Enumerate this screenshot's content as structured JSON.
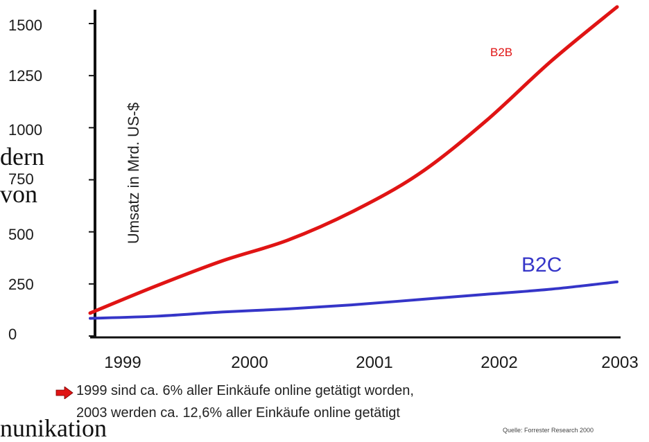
{
  "background_fragments": [
    "dern",
    "von",
    "nunikation"
  ],
  "chart_data": {
    "type": "line",
    "title": "",
    "xlabel": "",
    "ylabel": "Umsatz in Mrd. US-$",
    "x": [
      1999,
      2000,
      2001,
      2002,
      2003
    ],
    "xticks": [
      "1999",
      "2000",
      "2001",
      "2002",
      "2003"
    ],
    "yticks": [
      "0",
      "250",
      "500",
      "750",
      "1000",
      "1250",
      "1500"
    ],
    "ylim": [
      0,
      1500
    ],
    "xlim": [
      1999,
      2003
    ],
    "grid": false,
    "series": [
      {
        "name": "B2B",
        "color": "#e01414",
        "x": [
          1999,
          1999.5,
          2000,
          2000.5,
          2001,
          2001.5,
          2002,
          2002.5,
          2003
        ],
        "values": [
          110,
          240,
          360,
          460,
          600,
          780,
          1030,
          1320,
          1580
        ]
      },
      {
        "name": "B2C",
        "color": "#3535c8",
        "x": [
          1999,
          1999.5,
          2000,
          2000.5,
          2001,
          2001.5,
          2002,
          2002.5,
          2003
        ],
        "values": [
          85,
          95,
          115,
          130,
          150,
          175,
          200,
          225,
          260
        ]
      }
    ]
  },
  "notes": {
    "line1": "1999 sind ca. 6% aller Einkäufe online getätigt worden,",
    "line2": "2003 werden ca. 12,6% aller Einkäufe online getätigt",
    "source": "Quelle:  Forrester Research 2000"
  },
  "colors": {
    "arrow": "#e01414",
    "axis": "#111111"
  },
  "icons": {
    "bullet": "arrow-right-icon"
  }
}
